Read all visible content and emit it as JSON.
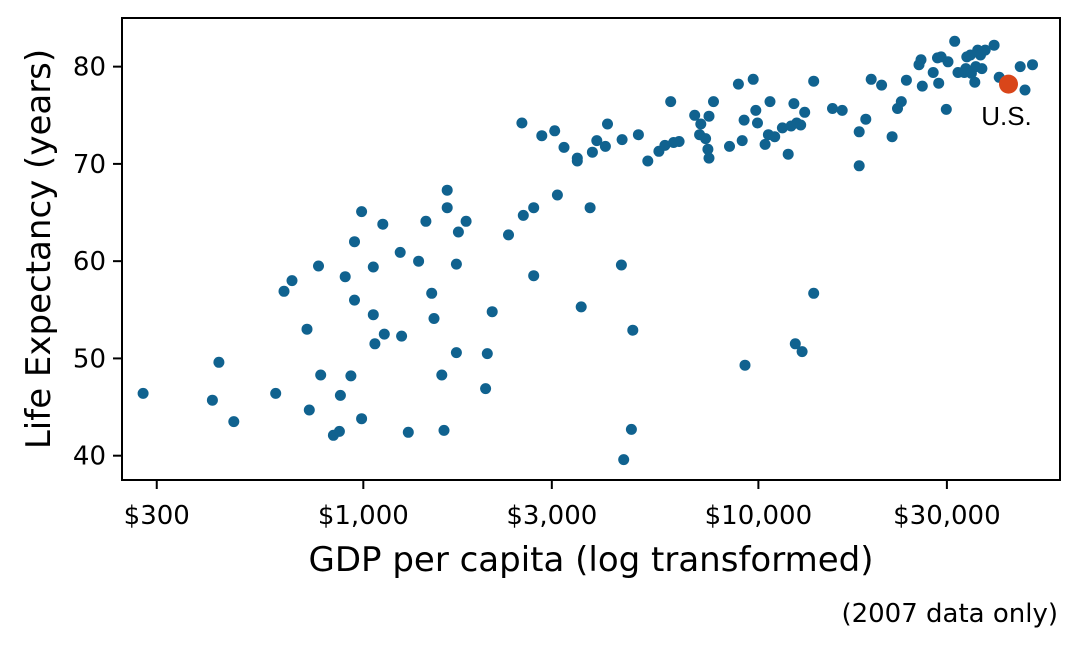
{
  "chart_data": {
    "type": "scatter",
    "title": "",
    "xlabel": "GDP per capita (log transformed)",
    "ylabel": "Life Expectancy (years)",
    "caption": "(2007 data only)",
    "x_scale": "log",
    "xlim": [
      245,
      58000
    ],
    "ylim": [
      37.5,
      85
    ],
    "x_ticks": [
      300,
      1000,
      3000,
      10000,
      30000
    ],
    "x_tick_labels": [
      "$300",
      "$1,000",
      "$3,000",
      "$10,000",
      "$30,000"
    ],
    "y_ticks": [
      40,
      50,
      60,
      70,
      80
    ],
    "y_tick_labels": [
      "40",
      "50",
      "60",
      "70",
      "80"
    ],
    "grid": false,
    "colors": {
      "points": "#10628f",
      "highlight": "#d9461a"
    },
    "highlight": {
      "label": "U.S.",
      "x": 42951,
      "y": 78.2
    },
    "points": [
      [
        277,
        46.4
      ],
      [
        415,
        45.7
      ],
      [
        431,
        49.6
      ],
      [
        470,
        43.5
      ],
      [
        600,
        46.4
      ],
      [
        630,
        56.9
      ],
      [
        660,
        58.0
      ],
      [
        720,
        53.0
      ],
      [
        730,
        44.7
      ],
      [
        780,
        48.3
      ],
      [
        770,
        59.5
      ],
      [
        840,
        42.1
      ],
      [
        870,
        42.5
      ],
      [
        875,
        46.2
      ],
      [
        900,
        58.4
      ],
      [
        930,
        48.2
      ],
      [
        950,
        56.0
      ],
      [
        950,
        62.0
      ],
      [
        990,
        65.1
      ],
      [
        990,
        43.8
      ],
      [
        1060,
        54.5
      ],
      [
        1070,
        51.5
      ],
      [
        1060,
        59.4
      ],
      [
        1130,
        52.5
      ],
      [
        1120,
        63.8
      ],
      [
        1250,
        52.3
      ],
      [
        1240,
        60.9
      ],
      [
        1300,
        42.4
      ],
      [
        1380,
        60.0
      ],
      [
        1440,
        64.1
      ],
      [
        1490,
        56.7
      ],
      [
        1510,
        54.1
      ],
      [
        1580,
        48.3
      ],
      [
        1600,
        42.6
      ],
      [
        1630,
        67.3
      ],
      [
        1630,
        65.5
      ],
      [
        1720,
        59.7
      ],
      [
        1720,
        50.6
      ],
      [
        1740,
        63.0
      ],
      [
        1820,
        64.1
      ],
      [
        2040,
        46.9
      ],
      [
        2060,
        50.5
      ],
      [
        2120,
        54.8
      ],
      [
        2330,
        62.7
      ],
      [
        2520,
        74.2
      ],
      [
        2540,
        64.7
      ],
      [
        2700,
        58.5
      ],
      [
        2700,
        65.5
      ],
      [
        2830,
        72.9
      ],
      [
        3050,
        73.4
      ],
      [
        3100,
        66.8
      ],
      [
        3220,
        71.7
      ],
      [
        3480,
        70.6
      ],
      [
        3480,
        70.3
      ],
      [
        3560,
        55.3
      ],
      [
        3750,
        65.5
      ],
      [
        3800,
        71.2
      ],
      [
        3900,
        72.4
      ],
      [
        4100,
        71.8
      ],
      [
        4150,
        74.1
      ],
      [
        4500,
        59.6
      ],
      [
        4520,
        72.5
      ],
      [
        4560,
        39.6
      ],
      [
        4770,
        42.7
      ],
      [
        4810,
        52.9
      ],
      [
        4970,
        73.0
      ],
      [
        5250,
        70.3
      ],
      [
        5600,
        71.3
      ],
      [
        5800,
        71.9
      ],
      [
        6000,
        76.4
      ],
      [
        6100,
        72.2
      ],
      [
        6300,
        72.3
      ],
      [
        6900,
        75.0
      ],
      [
        7100,
        73.0
      ],
      [
        7150,
        74.1
      ],
      [
        7350,
        72.6
      ],
      [
        7450,
        71.5
      ],
      [
        7500,
        74.9
      ],
      [
        7500,
        70.6
      ],
      [
        7700,
        76.4
      ],
      [
        8450,
        71.8
      ],
      [
        8900,
        78.2
      ],
      [
        9100,
        72.4
      ],
      [
        9200,
        74.5
      ],
      [
        9250,
        49.3
      ],
      [
        9700,
        78.7
      ],
      [
        9850,
        75.5
      ],
      [
        9950,
        74.2
      ],
      [
        10400,
        72.0
      ],
      [
        10600,
        73.0
      ],
      [
        10700,
        76.4
      ],
      [
        11000,
        72.8
      ],
      [
        11500,
        73.7
      ],
      [
        11900,
        71.0
      ],
      [
        12100,
        73.9
      ],
      [
        12300,
        76.2
      ],
      [
        12400,
        51.5
      ],
      [
        12500,
        74.2
      ],
      [
        12800,
        74.0
      ],
      [
        12900,
        50.7
      ],
      [
        13100,
        75.3
      ],
      [
        13800,
        56.7
      ],
      [
        13800,
        78.5
      ],
      [
        15400,
        75.7
      ],
      [
        16300,
        75.5
      ],
      [
        18000,
        73.3
      ],
      [
        18000,
        69.8
      ],
      [
        18700,
        74.6
      ],
      [
        19300,
        78.7
      ],
      [
        20500,
        78.1
      ],
      [
        21800,
        72.8
      ],
      [
        22500,
        75.7
      ],
      [
        23000,
        76.4
      ],
      [
        23700,
        78.6
      ],
      [
        25500,
        80.2
      ],
      [
        25800,
        80.7
      ],
      [
        26000,
        78.0
      ],
      [
        27700,
        79.4
      ],
      [
        28400,
        80.9
      ],
      [
        28600,
        78.3
      ],
      [
        29000,
        81.0
      ],
      [
        29900,
        75.6
      ],
      [
        30200,
        80.5
      ],
      [
        31400,
        82.6
      ],
      [
        32000,
        79.4
      ],
      [
        33200,
        79.4
      ],
      [
        33500,
        79.8
      ],
      [
        33700,
        81.0
      ],
      [
        34400,
        81.2
      ],
      [
        34600,
        79.3
      ],
      [
        35300,
        78.4
      ],
      [
        35500,
        80.0
      ],
      [
        35900,
        81.7
      ],
      [
        36500,
        81.2
      ],
      [
        36800,
        79.8
      ],
      [
        37500,
        81.7
      ],
      [
        39500,
        82.2
      ],
      [
        40700,
        78.9
      ],
      [
        46000,
        80.0
      ],
      [
        47300,
        77.6
      ],
      [
        49400,
        80.2
      ]
    ]
  }
}
